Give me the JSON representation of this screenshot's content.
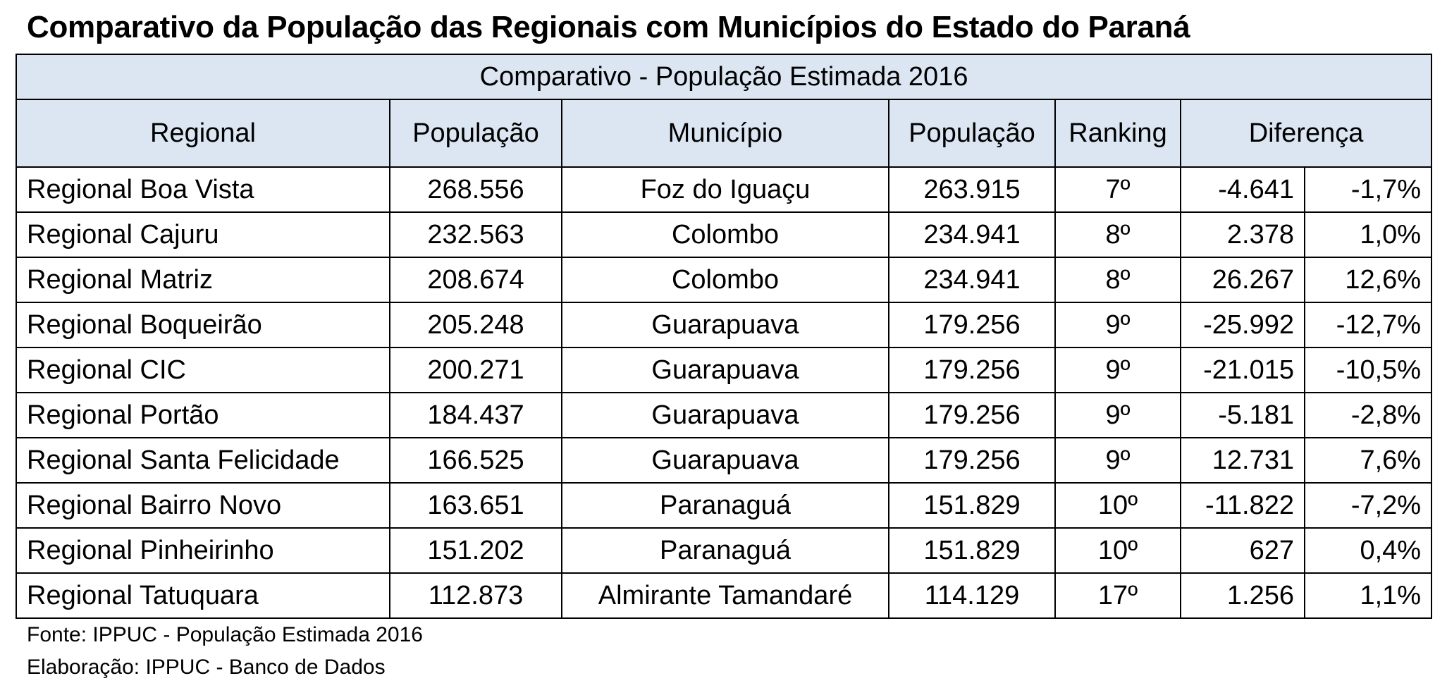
{
  "title": "Comparativo da População das Regionais com Municípios do Estado do Paraná",
  "table": {
    "band_title": "Comparativo - População Estimada 2016",
    "headers": {
      "regional": "Regional",
      "populacao_regional": "População",
      "municipio": "Município",
      "populacao_municipio": "População",
      "ranking": "Ranking",
      "diferenca": "Diferença"
    },
    "rows": [
      {
        "regional": "Regional Boa Vista",
        "pop_regional": "268.556",
        "municipio": "Foz do Iguaçu",
        "pop_municipio": "263.915",
        "ranking": "7º",
        "dif_abs": "-4.641",
        "dif_pct": "-1,7%"
      },
      {
        "regional": "Regional Cajuru",
        "pop_regional": "232.563",
        "municipio": "Colombo",
        "pop_municipio": "234.941",
        "ranking": "8º",
        "dif_abs": "2.378",
        "dif_pct": "1,0%"
      },
      {
        "regional": "Regional Matriz",
        "pop_regional": "208.674",
        "municipio": "Colombo",
        "pop_municipio": "234.941",
        "ranking": "8º",
        "dif_abs": "26.267",
        "dif_pct": "12,6%"
      },
      {
        "regional": "Regional Boqueirão",
        "pop_regional": "205.248",
        "municipio": "Guarapuava",
        "pop_municipio": "179.256",
        "ranking": "9º",
        "dif_abs": "-25.992",
        "dif_pct": "-12,7%"
      },
      {
        "regional": "Regional CIC",
        "pop_regional": "200.271",
        "municipio": "Guarapuava",
        "pop_municipio": "179.256",
        "ranking": "9º",
        "dif_abs": "-21.015",
        "dif_pct": "-10,5%"
      },
      {
        "regional": "Regional Portão",
        "pop_regional": "184.437",
        "municipio": "Guarapuava",
        "pop_municipio": "179.256",
        "ranking": "9º",
        "dif_abs": "-5.181",
        "dif_pct": "-2,8%"
      },
      {
        "regional": "Regional Santa Felicidade",
        "pop_regional": "166.525",
        "municipio": "Guarapuava",
        "pop_municipio": "179.256",
        "ranking": "9º",
        "dif_abs": "12.731",
        "dif_pct": "7,6%"
      },
      {
        "regional": "Regional Bairro Novo",
        "pop_regional": "163.651",
        "municipio": "Paranaguá",
        "pop_municipio": "151.829",
        "ranking": "10º",
        "dif_abs": "-11.822",
        "dif_pct": "-7,2%"
      },
      {
        "regional": "Regional Pinheirinho",
        "pop_regional": "151.202",
        "municipio": "Paranaguá",
        "pop_municipio": "151.829",
        "ranking": "10º",
        "dif_abs": "627",
        "dif_pct": "0,4%"
      },
      {
        "regional": "Regional Tatuquara",
        "pop_regional": "112.873",
        "municipio": "Almirante Tamandaré",
        "pop_municipio": "114.129",
        "ranking": "17º",
        "dif_abs": "1.256",
        "dif_pct": "1,1%"
      }
    ]
  },
  "footer": {
    "source": "Fonte: IPPUC - População Estimada 2016",
    "elaboration": "Elaboração: IPPUC - Banco de Dados"
  },
  "colors": {
    "header_fill": "#dce6f2",
    "border": "#000000",
    "text": "#000000"
  }
}
